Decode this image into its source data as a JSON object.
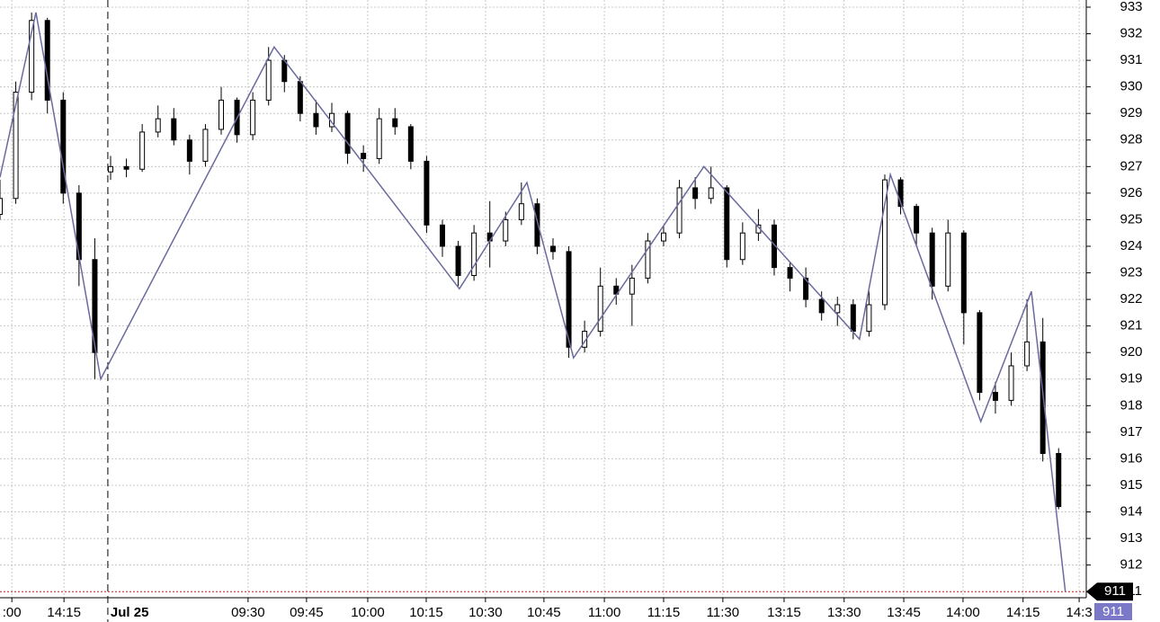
{
  "chart_data": {
    "type": "candlestick",
    "xlim": [
      0,
      275
    ],
    "ylim": [
      910.77,
      933.27
    ],
    "yticks": [
      911,
      912,
      913,
      914,
      915,
      916,
      917,
      918,
      919,
      920,
      921,
      922,
      923,
      924,
      925,
      926,
      927,
      928,
      929,
      930,
      931,
      932,
      933
    ],
    "xticks": [
      {
        "value": 3,
        "label": ":00"
      },
      {
        "value": 16.2,
        "label": "14:15"
      },
      {
        "value": 62.8,
        "label": "09:30"
      },
      {
        "value": 77.6,
        "label": "09:45"
      },
      {
        "value": 93.1,
        "label": "10:00"
      },
      {
        "value": 107.9,
        "label": "10:15"
      },
      {
        "value": 122.9,
        "label": "10:30"
      },
      {
        "value": 137.7,
        "label": "10:45"
      },
      {
        "value": 153,
        "label": "11:00"
      },
      {
        "value": 168,
        "label": "11:15"
      },
      {
        "value": 183,
        "label": "11:30"
      },
      {
        "value": 198.5,
        "label": "13:15"
      },
      {
        "value": 213.7,
        "label": "13:30"
      },
      {
        "value": 228.8,
        "label": "13:45"
      },
      {
        "value": 243.8,
        "label": "14:00"
      },
      {
        "value": 259,
        "label": "14:15"
      },
      {
        "value": 273.2,
        "label": "14:3"
      }
    ],
    "grid": true,
    "session_break": {
      "x": 27.3,
      "label": "Jul 25"
    },
    "candles": {
      "up_color": "#ffffff",
      "down_color": "#000000",
      "x": [
        0,
        4,
        8,
        12,
        16,
        20,
        24,
        28,
        32,
        36,
        40,
        44,
        48,
        52,
        56,
        60,
        64,
        68,
        72,
        76,
        80,
        84,
        88,
        92,
        96,
        100,
        104,
        108,
        112,
        116,
        120,
        124,
        128,
        132,
        136,
        140,
        144,
        148,
        152,
        156,
        160,
        164,
        168,
        172,
        176,
        180,
        184,
        188,
        192,
        196,
        200,
        204,
        208,
        212,
        216,
        220,
        224,
        228,
        232,
        236,
        240,
        244,
        248,
        252,
        256,
        260,
        264,
        268
      ],
      "open": [
        925.2,
        925.8,
        929.8,
        932.5,
        929.5,
        926,
        923.5,
        926.8,
        927,
        926.9,
        928.3,
        928.8,
        928,
        927.2,
        928.4,
        929.5,
        928.2,
        929.5,
        931,
        930.2,
        929,
        928.5,
        929,
        927.5,
        927.3,
        928.8,
        928.5,
        927.2,
        924.8,
        924,
        922.9,
        924.5,
        924.2,
        925,
        925.6,
        924,
        923.8,
        920.2,
        920.8,
        922.5,
        922.2,
        922.8,
        924.2,
        924.5,
        926.2,
        925.8,
        926.2,
        923.5,
        924.5,
        924.8,
        923.2,
        922.8,
        922,
        921.5,
        921.8,
        920.8,
        921.8,
        926.5,
        925.5,
        924.5,
        922.5,
        924.5,
        921.5,
        918.5,
        918.2,
        919.5,
        920.4,
        916.2
      ],
      "high": [
        926.5,
        930.2,
        932.8,
        932.6,
        929.8,
        926.3,
        924.3,
        927.4,
        927.3,
        928.6,
        929.3,
        929.2,
        928.2,
        928.6,
        930,
        929.6,
        929.8,
        931.5,
        931.2,
        930.4,
        929.5,
        929.4,
        929.1,
        927.8,
        929.2,
        929.2,
        928.6,
        927.4,
        925,
        924.2,
        924.8,
        925.7,
        925.3,
        926.4,
        925.8,
        924.3,
        924,
        921.2,
        923.2,
        922.8,
        923.3,
        924.5,
        924.8,
        926.5,
        926.6,
        927,
        926.3,
        924.9,
        925.4,
        925,
        923.4,
        923.2,
        922.3,
        922.1,
        922,
        922.3,
        926.7,
        926.6,
        925.6,
        924.7,
        925,
        924.6,
        921.6,
        918.9,
        920,
        922,
        921.3,
        916.4
      ],
      "low": [
        925,
        925.6,
        929.5,
        929,
        925.6,
        922.5,
        919,
        926.5,
        926.6,
        926.8,
        928.1,
        927.8,
        926.7,
        927,
        928.2,
        927.9,
        928,
        929.3,
        929.8,
        928.7,
        928.2,
        928.3,
        927.1,
        926.8,
        927.1,
        928.2,
        926.9,
        924.5,
        923.6,
        922.5,
        922.7,
        923.2,
        924,
        924.8,
        923.7,
        923.5,
        919.8,
        920,
        920.6,
        921.8,
        921,
        922.6,
        924,
        924.3,
        925.4,
        925.6,
        923.2,
        923.3,
        924.2,
        922.9,
        922.3,
        921.7,
        921.2,
        921,
        920.5,
        920.6,
        921.6,
        925.2,
        924,
        922,
        922.3,
        920.3,
        918.2,
        917.7,
        918,
        919.3,
        915.9,
        914.1
      ],
      "close": [
        925.8,
        929.8,
        932.5,
        929.5,
        926,
        923.5,
        920,
        927,
        926.9,
        928.3,
        928.8,
        928,
        927.2,
        928.4,
        929.5,
        928.2,
        929.5,
        931,
        930.2,
        929,
        928.5,
        929,
        927.5,
        927.3,
        928.8,
        928.5,
        927.2,
        924.8,
        924,
        922.9,
        924.5,
        924.2,
        925,
        925.6,
        924,
        923.8,
        920.2,
        920.8,
        922.5,
        922.2,
        922.8,
        924.2,
        924.5,
        926.2,
        925.8,
        926.2,
        923.5,
        924.5,
        924.8,
        923.2,
        922.8,
        922,
        921.5,
        921.8,
        920.8,
        921.8,
        926.5,
        925.5,
        924.5,
        922.5,
        924.5,
        921.5,
        918.5,
        918.2,
        919.5,
        920.4,
        916.2,
        914.2
      ]
    },
    "zigzag": {
      "color": "#6a6a9e",
      "x": [
        0,
        9.1,
        25.5,
        69.4,
        116.3,
        133.4,
        145.2,
        178.2,
        217.6,
        225.4,
        248.3,
        261.1,
        269.7
      ],
      "values": [
        926.6,
        932.8,
        919,
        931.5,
        922.4,
        926.4,
        919.8,
        927,
        920.5,
        926.7,
        917.4,
        922.3,
        911
      ]
    },
    "last_price": 911,
    "last_line_color": "#c03030",
    "last_box_color": "#7b78c8"
  }
}
